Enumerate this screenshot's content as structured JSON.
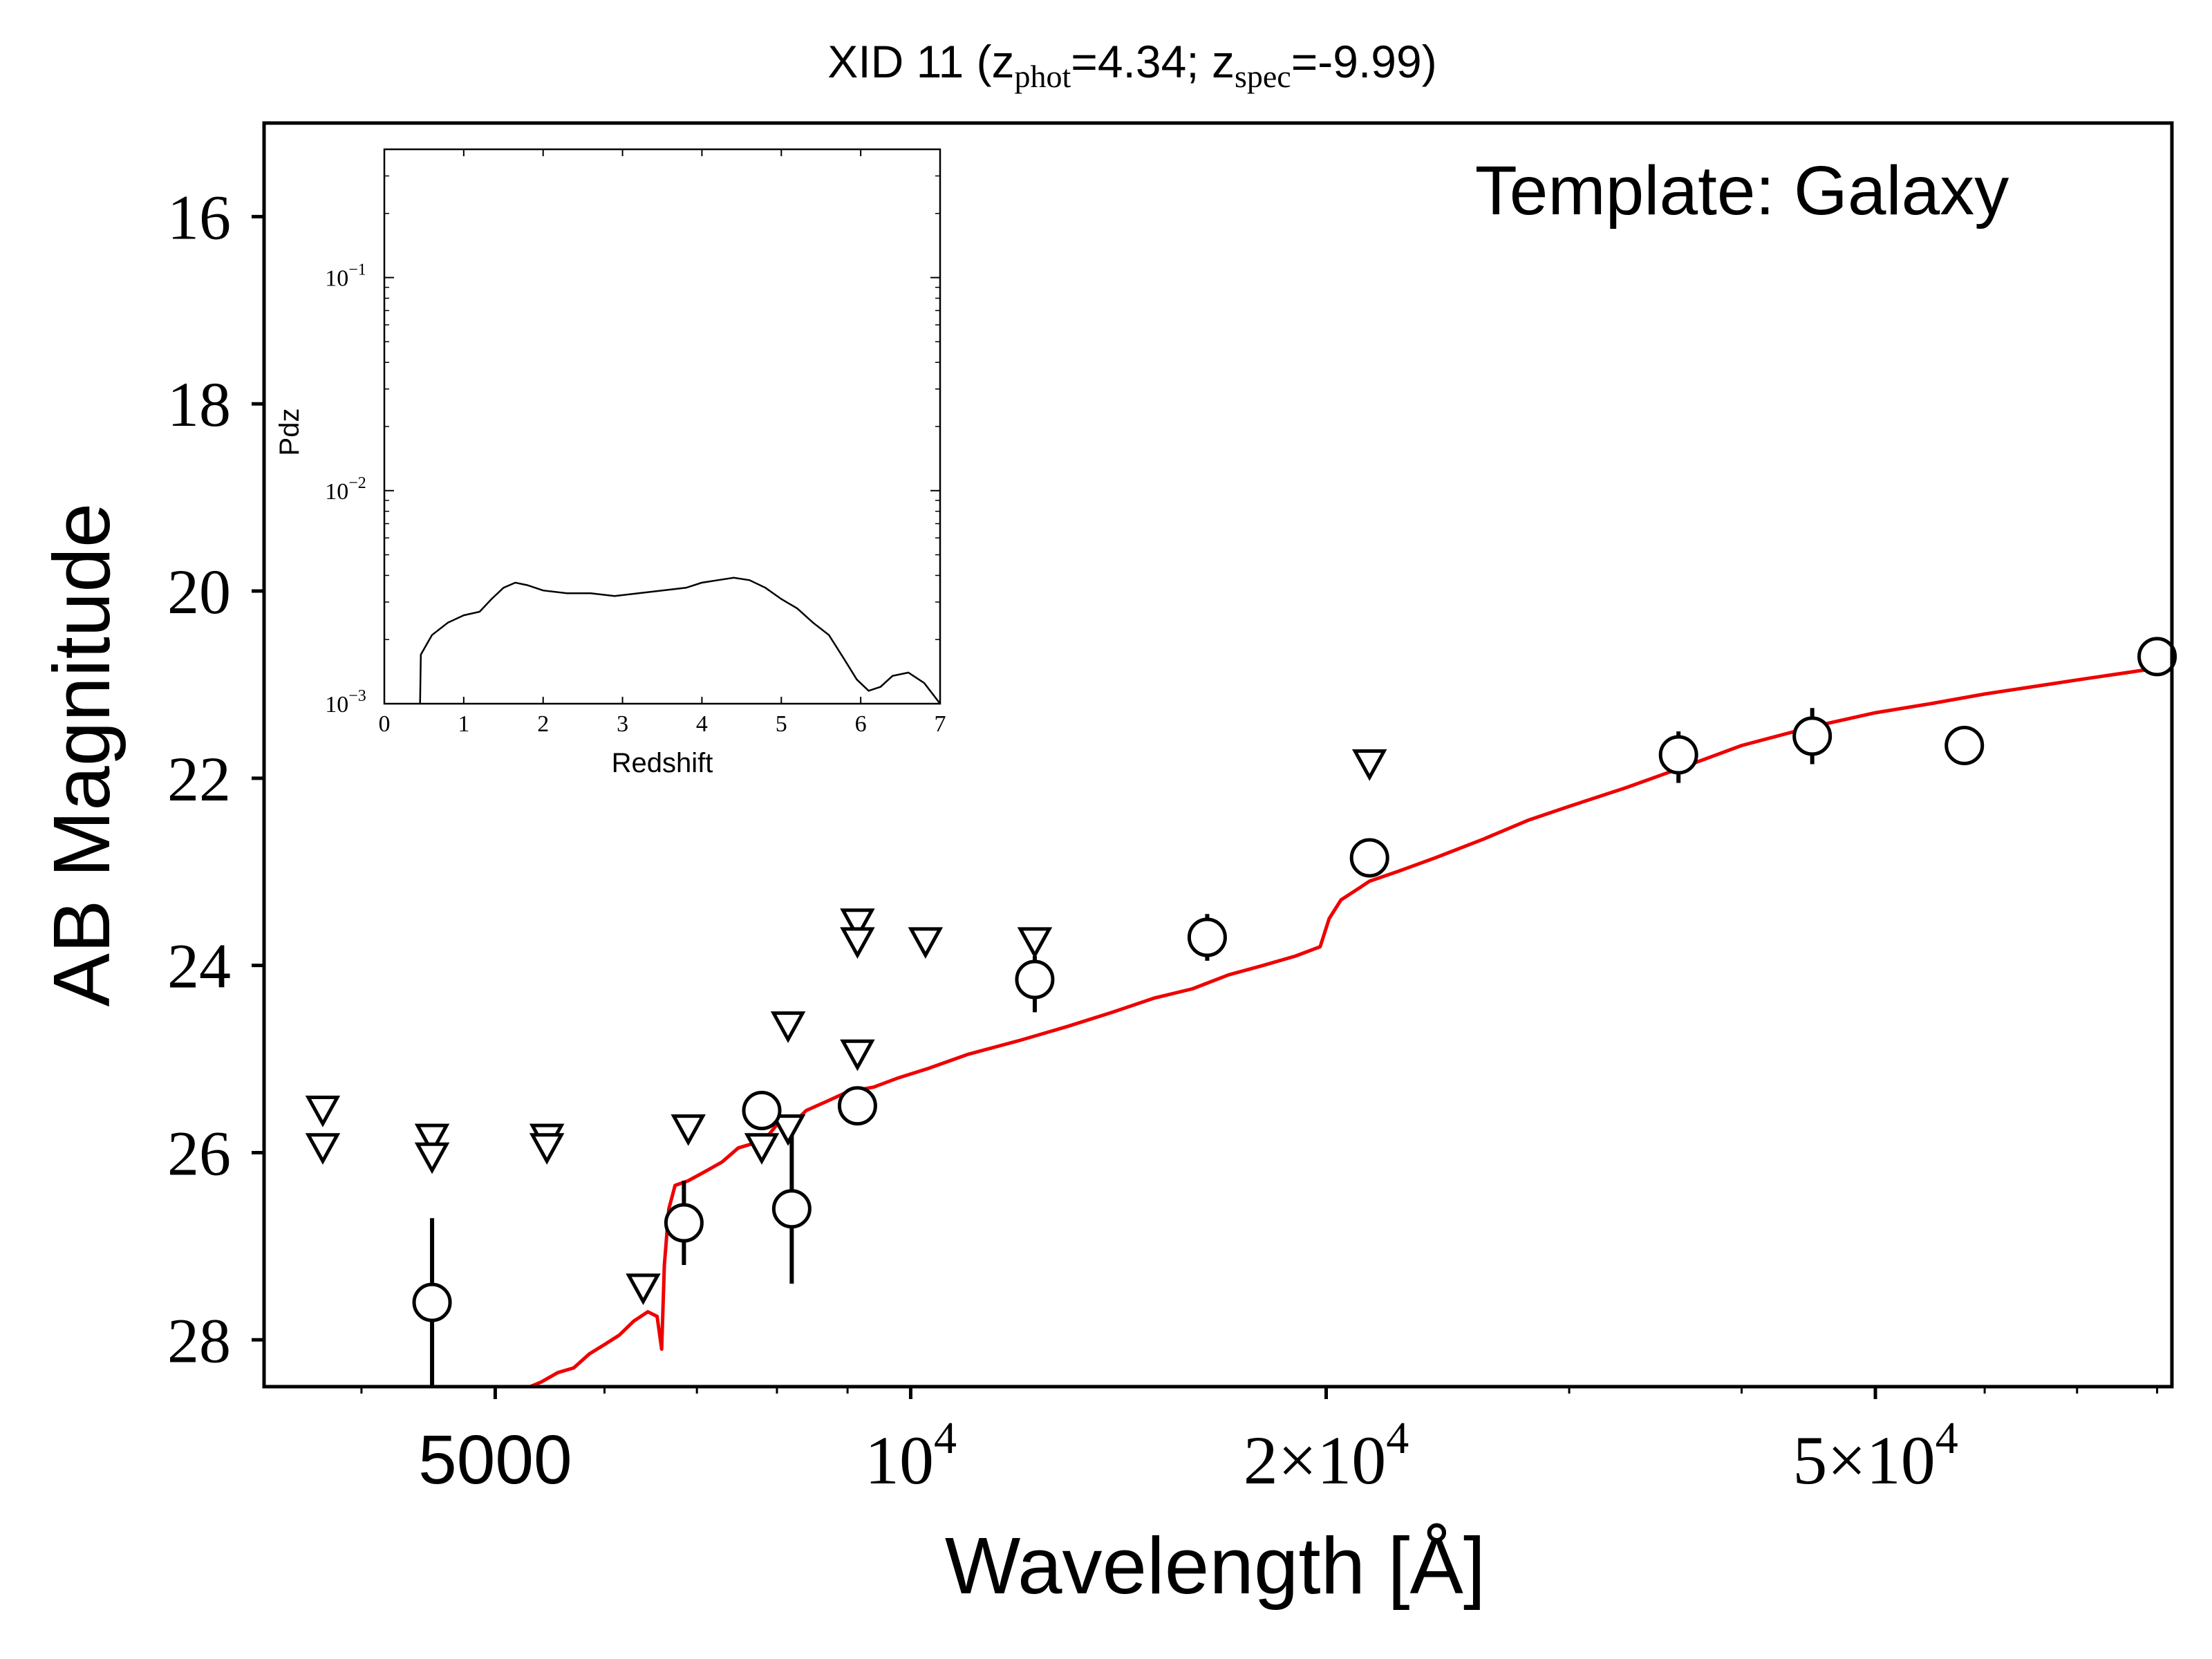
{
  "chart_data": [
    {
      "type": "scatter",
      "title": "XID 11 (z_phot=4.34; z_spec=-9.99)",
      "title_parts": {
        "id": "XID 11",
        "zphot_sym": "z",
        "zphot_sub": "phot",
        "zphot_val": "=4.34;",
        "zspec_sym": "z",
        "zspec_sub": "spec",
        "zspec_val": "=-9.99)"
      },
      "annotation": "Template: Galaxy",
      "xlabel": "Wavelength [Å]",
      "ylabel": "AB Magnitude",
      "xscale": "log",
      "xlim": [
        3400,
        82000
      ],
      "ylim": [
        28.5,
        15.0
      ],
      "yaxis_inverted": true,
      "x_ticks": [
        {
          "value": 5000,
          "label": "5000"
        },
        {
          "value": 10000,
          "base": "10",
          "exp": "4"
        },
        {
          "value": 20000,
          "mant": "2",
          "times": "×",
          "base": "10",
          "exp": "4"
        },
        {
          "value": 50000,
          "mant": "5",
          "times": "×",
          "base": "10",
          "exp": "4"
        }
      ],
      "y_ticks": [
        {
          "value": 16,
          "label": "16"
        },
        {
          "value": 18,
          "label": "18"
        },
        {
          "value": 20,
          "label": "20"
        },
        {
          "value": 22,
          "label": "22"
        },
        {
          "value": 24,
          "label": "24"
        },
        {
          "value": 26,
          "label": "26"
        },
        {
          "value": 28,
          "label": "28"
        }
      ],
      "colors": {
        "model": "#ee0000",
        "points": "#000000"
      },
      "detections": [
        {
          "x": 4500,
          "y": 27.6,
          "err": [
            26.7,
            29.0
          ]
        },
        {
          "x": 6850,
          "y": 26.75,
          "err": [
            26.3,
            27.2
          ]
        },
        {
          "x": 7800,
          "y": 25.55,
          "err": [
            25.5,
            25.6
          ]
        },
        {
          "x": 8200,
          "y": 26.6,
          "err": [
            25.7,
            27.4
          ]
        },
        {
          "x": 9150,
          "y": 25.5,
          "err": [
            25.45,
            25.55
          ]
        },
        {
          "x": 12300,
          "y": 24.15,
          "err": [
            23.9,
            24.5
          ]
        },
        {
          "x": 16400,
          "y": 23.7,
          "err": [
            23.45,
            23.95
          ]
        },
        {
          "x": 21500,
          "y": 22.85,
          "err": [
            22.8,
            22.9
          ]
        },
        {
          "x": 36000,
          "y": 21.75,
          "err": [
            21.5,
            22.05
          ]
        },
        {
          "x": 45000,
          "y": 21.55,
          "err": [
            21.25,
            21.85
          ]
        },
        {
          "x": 58000,
          "y": 21.65,
          "err": [
            21.65,
            21.65
          ]
        },
        {
          "x": 80000,
          "y": 20.7,
          "err": [
            20.7,
            20.7
          ]
        }
      ],
      "upper_limits": [
        {
          "x": 3750,
          "y": 25.55
        },
        {
          "x": 3750,
          "y": 25.95
        },
        {
          "x": 4500,
          "y": 25.85
        },
        {
          "x": 4500,
          "y": 26.05
        },
        {
          "x": 5450,
          "y": 25.85
        },
        {
          "x": 5450,
          "y": 25.95
        },
        {
          "x": 6400,
          "y": 27.45
        },
        {
          "x": 6900,
          "y": 25.75
        },
        {
          "x": 7800,
          "y": 25.95
        },
        {
          "x": 8150,
          "y": 24.65
        },
        {
          "x": 8150,
          "y": 25.75
        },
        {
          "x": 9150,
          "y": 23.55
        },
        {
          "x": 9150,
          "y": 23.75
        },
        {
          "x": 9150,
          "y": 24.95
        },
        {
          "x": 10250,
          "y": 23.75
        },
        {
          "x": 12300,
          "y": 23.75
        },
        {
          "x": 21500,
          "y": 21.85
        }
      ],
      "model_sed": [
        [
          5300,
          28.5
        ],
        [
          5400,
          28.45
        ],
        [
          5550,
          28.35
        ],
        [
          5700,
          28.3
        ],
        [
          5850,
          28.15
        ],
        [
          6000,
          28.05
        ],
        [
          6150,
          27.95
        ],
        [
          6300,
          27.8
        ],
        [
          6450,
          27.7
        ],
        [
          6550,
          27.75
        ],
        [
          6600,
          28.1
        ],
        [
          6630,
          27.2
        ],
        [
          6680,
          26.6
        ],
        [
          6750,
          26.35
        ],
        [
          6900,
          26.3
        ],
        [
          7100,
          26.2
        ],
        [
          7300,
          26.1
        ],
        [
          7500,
          25.95
        ],
        [
          7700,
          25.9
        ],
        [
          7850,
          25.85
        ],
        [
          8000,
          25.7
        ],
        [
          8200,
          25.7
        ],
        [
          8400,
          25.55
        ],
        [
          8700,
          25.45
        ],
        [
          9000,
          25.35
        ],
        [
          9400,
          25.3
        ],
        [
          9800,
          25.2
        ],
        [
          10300,
          25.1
        ],
        [
          11000,
          24.95
        ],
        [
          12000,
          24.8
        ],
        [
          13000,
          24.65
        ],
        [
          14000,
          24.5
        ],
        [
          15000,
          24.35
        ],
        [
          16000,
          24.25
        ],
        [
          17000,
          24.1
        ],
        [
          18000,
          24.0
        ],
        [
          19000,
          23.9
        ],
        [
          19800,
          23.8
        ],
        [
          20100,
          23.5
        ],
        [
          20500,
          23.3
        ],
        [
          21000,
          23.2
        ],
        [
          21500,
          23.1
        ],
        [
          22500,
          23.0
        ],
        [
          24000,
          22.85
        ],
        [
          26000,
          22.65
        ],
        [
          28000,
          22.45
        ],
        [
          30000,
          22.3
        ],
        [
          33000,
          22.1
        ],
        [
          36000,
          21.9
        ],
        [
          40000,
          21.65
        ],
        [
          45000,
          21.45
        ],
        [
          50000,
          21.3
        ],
        [
          55000,
          21.2
        ],
        [
          60000,
          21.1
        ],
        [
          70000,
          20.95
        ],
        [
          82000,
          20.8
        ]
      ]
    },
    {
      "type": "line",
      "xlabel": "Redshift",
      "ylabel": "Pdz",
      "yscale": "log",
      "xlim": [
        0,
        7
      ],
      "ylim": [
        0.001,
        0.4
      ],
      "x_ticks": [
        "0",
        "1",
        "2",
        "3",
        "4",
        "5",
        "6",
        "7"
      ],
      "y_ticks": [
        {
          "value": 0.1,
          "base": "10",
          "exp": "−1"
        },
        {
          "value": 0.01,
          "base": "10",
          "exp": "−2"
        },
        {
          "value": 0.001,
          "base": "10",
          "exp": "−3"
        }
      ],
      "x": [
        0.45,
        0.46,
        0.6,
        0.8,
        1.0,
        1.2,
        1.35,
        1.5,
        1.65,
        1.8,
        2.0,
        2.3,
        2.6,
        2.9,
        3.2,
        3.5,
        3.8,
        4.0,
        4.2,
        4.4,
        4.6,
        4.8,
        5.0,
        5.2,
        5.4,
        5.6,
        5.8,
        5.95,
        6.1,
        6.25,
        6.4,
        6.6,
        6.8,
        7.0
      ],
      "y": [
        0.001,
        0.0017,
        0.0021,
        0.0024,
        0.0026,
        0.0027,
        0.0031,
        0.0035,
        0.0037,
        0.0036,
        0.0034,
        0.0033,
        0.0033,
        0.0032,
        0.0033,
        0.0034,
        0.0035,
        0.0037,
        0.0038,
        0.0039,
        0.0038,
        0.0035,
        0.0031,
        0.0028,
        0.0024,
        0.0021,
        0.0016,
        0.0013,
        0.00115,
        0.0012,
        0.00135,
        0.0014,
        0.00125,
        0.001
      ]
    }
  ]
}
